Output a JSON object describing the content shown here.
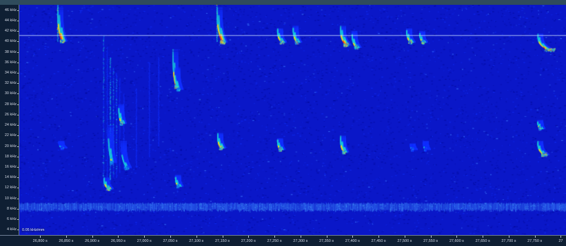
{
  "window": {
    "title": ""
  },
  "viewer": {
    "freq_unit": "kHz",
    "time_unit": "s",
    "scale_note": "0.05 kHz/mm",
    "reference_line_khz": 41.2
  },
  "axes": {
    "y": {
      "range_khz": [
        3,
        47
      ],
      "ticks": [
        {
          "value": 46,
          "label": "46 kHz"
        },
        {
          "value": 44,
          "label": "44 kHz"
        },
        {
          "value": 42,
          "label": "42 kHz"
        },
        {
          "value": 40,
          "label": "40 kHz"
        },
        {
          "value": 38,
          "label": "38 kHz"
        },
        {
          "value": 36,
          "label": "36 kHz"
        },
        {
          "value": 34,
          "label": "34 kHz"
        },
        {
          "value": 32,
          "label": "32 kHz"
        },
        {
          "value": 30,
          "label": "30 kHz"
        },
        {
          "value": 28,
          "label": "28 kHz"
        },
        {
          "value": 26,
          "label": "26 kHz"
        },
        {
          "value": 24,
          "label": "24 kHz"
        },
        {
          "value": 22,
          "label": "22 kHz"
        },
        {
          "value": 20,
          "label": "20 kHz"
        },
        {
          "value": 18,
          "label": "18 kHz"
        },
        {
          "value": 16,
          "label": "16 kHz"
        },
        {
          "value": 14,
          "label": "14 kHz"
        },
        {
          "value": 12,
          "label": "12 kHz"
        },
        {
          "value": 10,
          "label": "10 kHz"
        },
        {
          "value": 8,
          "label": "8 kHz"
        },
        {
          "value": 6,
          "label": "6 kHz"
        },
        {
          "value": 4,
          "label": "4 kHz"
        }
      ]
    },
    "x": {
      "range_s": [
        26760,
        27810
      ],
      "ticks": [
        {
          "value": 26800,
          "label": "26,800 s"
        },
        {
          "value": 26850,
          "label": "26,850 s"
        },
        {
          "value": 26900,
          "label": "26,900 s"
        },
        {
          "value": 26950,
          "label": "26,950 s"
        },
        {
          "value": 27000,
          "label": "27,000 s"
        },
        {
          "value": 27050,
          "label": "27,050 s"
        },
        {
          "value": 27100,
          "label": "27,100 s"
        },
        {
          "value": 27150,
          "label": "27,150 s"
        },
        {
          "value": 27200,
          "label": "27,200 s"
        },
        {
          "value": 27250,
          "label": "27,250 s"
        },
        {
          "value": 27300,
          "label": "27,300 s"
        },
        {
          "value": 27350,
          "label": "27,350 s"
        },
        {
          "value": 27400,
          "label": "27,400 s"
        },
        {
          "value": 27450,
          "label": "27,450 s"
        },
        {
          "value": 27500,
          "label": "27,500 s"
        },
        {
          "value": 27550,
          "label": "27,550 s"
        },
        {
          "value": 27600,
          "label": "27,600 s"
        },
        {
          "value": 27650,
          "label": "27,650 s"
        },
        {
          "value": 27700,
          "label": "27,700 s"
        },
        {
          "value": 27750,
          "label": "27,750 s"
        },
        {
          "value": 27800,
          "label": "27"
        }
      ]
    }
  },
  "colors": {
    "background": "#0a17c8",
    "low": "#1230ff",
    "mid": "#18c8e0",
    "high": "#f0e020",
    "peak": "#ff4a10",
    "reference_line": "#c8d8ff"
  },
  "calls": [
    {
      "t_start": 26833,
      "f_high": 46.5,
      "f_low": 40.2,
      "dur": 8,
      "intensity": 1.0
    },
    {
      "t_start": 27139,
      "f_high": 46.5,
      "f_low": 40.0,
      "dur": 10,
      "intensity": 1.0
    },
    {
      "t_start": 27255,
      "f_high": 42.5,
      "f_low": 40.0,
      "dur": 8,
      "intensity": 0.9
    },
    {
      "t_start": 27285,
      "f_high": 43.0,
      "f_low": 40.0,
      "dur": 7,
      "intensity": 0.85
    },
    {
      "t_start": 27376,
      "f_high": 43.0,
      "f_low": 39.5,
      "dur": 10,
      "intensity": 1.0
    },
    {
      "t_start": 27398,
      "f_high": 42.0,
      "f_low": 39.0,
      "dur": 8,
      "intensity": 0.8
    },
    {
      "t_start": 27503,
      "f_high": 42.5,
      "f_low": 40.0,
      "dur": 7,
      "intensity": 0.85
    },
    {
      "t_start": 27528,
      "f_high": 42.0,
      "f_low": 40.0,
      "dur": 6,
      "intensity": 0.8
    },
    {
      "t_start": 27755,
      "f_high": 41.5,
      "f_low": 38.5,
      "dur": 22,
      "intensity": 1.0
    },
    {
      "t_start": 27054,
      "f_high": 38.5,
      "f_low": 31.5,
      "dur": 6,
      "intensity": 0.9
    },
    {
      "t_start": 27058,
      "f_high": 35.0,
      "f_low": 31.0,
      "dur": 6,
      "intensity": 0.7
    },
    {
      "t_start": 27140,
      "f_high": 22.5,
      "f_low": 19.8,
      "dur": 6,
      "intensity": 0.9
    },
    {
      "t_start": 27255,
      "f_high": 21.5,
      "f_low": 19.5,
      "dur": 5,
      "intensity": 0.85
    },
    {
      "t_start": 27376,
      "f_high": 22.0,
      "f_low": 19.0,
      "dur": 6,
      "intensity": 0.9
    },
    {
      "t_start": 27755,
      "f_high": 25.0,
      "f_low": 23.5,
      "dur": 4,
      "intensity": 0.8
    },
    {
      "t_start": 27755,
      "f_high": 21.0,
      "f_low": 18.5,
      "dur": 12,
      "intensity": 0.9
    },
    {
      "t_start": 27510,
      "f_high": 20.5,
      "f_low": 19.5,
      "dur": 4,
      "intensity": 0.5
    },
    {
      "t_start": 27535,
      "f_high": 21.0,
      "f_low": 19.5,
      "dur": 4,
      "intensity": 0.5
    },
    {
      "t_start": 26835,
      "f_high": 21.0,
      "f_low": 19.8,
      "dur": 6,
      "intensity": 0.5
    },
    {
      "t_start": 27059,
      "f_high": 14.5,
      "f_low": 12.5,
      "dur": 5,
      "intensity": 0.8
    },
    {
      "t_start": 26922,
      "f_high": 14.0,
      "f_low": 12.0,
      "dur": 8,
      "intensity": 0.9
    },
    {
      "t_start": 26950,
      "f_high": 28.0,
      "f_low": 24.5,
      "dur": 5,
      "intensity": 0.8
    },
    {
      "t_start": 26930,
      "f_high": 24.0,
      "f_low": 17.0,
      "dur": 6,
      "intensity": 0.7
    },
    {
      "t_start": 26955,
      "f_high": 21.0,
      "f_low": 16.0,
      "dur": 10,
      "intensity": 0.6
    }
  ],
  "vertical_streaks": [
    {
      "t": 26921,
      "f_top": 41,
      "f_bottom": 12,
      "intensity": 0.6
    },
    {
      "t": 26928,
      "f_top": 39,
      "f_bottom": 13,
      "intensity": 0.5
    },
    {
      "t": 26934,
      "f_top": 37,
      "f_bottom": 13,
      "intensity": 0.7
    },
    {
      "t": 26940,
      "f_top": 35,
      "f_bottom": 14,
      "intensity": 0.6
    },
    {
      "t": 26946,
      "f_top": 34,
      "f_bottom": 14,
      "intensity": 0.55
    },
    {
      "t": 26952,
      "f_top": 33,
      "f_bottom": 15,
      "intensity": 0.5
    },
    {
      "t": 26960,
      "f_top": 30,
      "f_bottom": 16,
      "intensity": 0.45
    },
    {
      "t": 26984,
      "f_top": 31,
      "f_bottom": 16,
      "intensity": 0.4
    },
    {
      "t": 27009,
      "f_top": 36,
      "f_bottom": 18,
      "intensity": 0.45
    },
    {
      "t": 27027,
      "f_top": 37,
      "f_bottom": 20,
      "intensity": 0.4
    },
    {
      "t": 27139,
      "f_top": 47,
      "f_bottom": 40,
      "intensity": 0.9
    },
    {
      "t": 26833,
      "f_top": 47,
      "f_bottom": 40,
      "intensity": 0.9
    }
  ],
  "noise_band_khz": [
    7.6,
    9.2
  ]
}
